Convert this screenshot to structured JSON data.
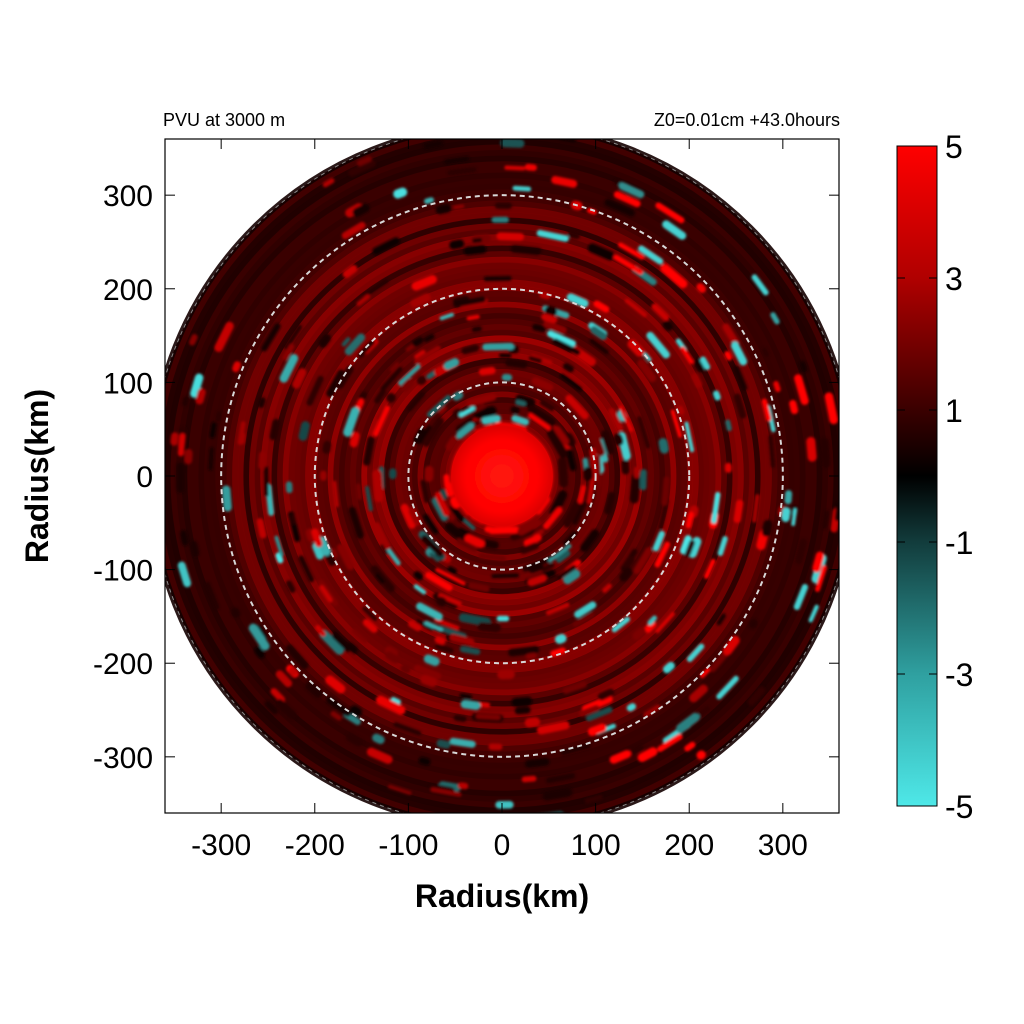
{
  "chart_data": {
    "type": "heatmap",
    "title_left": "PVU at  3000 m",
    "title_right": "Z0=0.01cm  +43.0hours",
    "xlabel": "Radius(km)",
    "ylabel": "Radius(km)",
    "xlim": [
      -360,
      360
    ],
    "ylim": [
      -360,
      360
    ],
    "x_ticks": [
      -300,
      -200,
      -100,
      0,
      100,
      200,
      300
    ],
    "y_ticks": [
      300,
      200,
      100,
      0,
      -100,
      -200,
      -300
    ],
    "data_radius_km": 375,
    "reference_circles_km": [
      100,
      200,
      300
    ],
    "colorbar": {
      "min": -5,
      "max": 5,
      "tick_labels": [
        "5",
        "3",
        "1",
        "-1",
        "-3",
        "-5"
      ],
      "tick_values": [
        5,
        3,
        1,
        -1,
        -3,
        -5
      ],
      "colors": {
        "high": "#ff0000",
        "mid": "#000000",
        "low": "#4ee8e8"
      }
    },
    "field_features": [
      {
        "name": "core",
        "radius_km": [
          0,
          55
        ],
        "value": 5
      },
      {
        "name": "inner-ring",
        "radius_km": [
          55,
          100
        ],
        "value": 1.5
      },
      {
        "name": "mid-ring",
        "radius_km": [
          100,
          200
        ],
        "value": 2
      },
      {
        "name": "outer-ring",
        "radius_km": [
          200,
          300
        ],
        "value": 1.8
      },
      {
        "name": "edge",
        "radius_km": [
          300,
          375
        ],
        "value": 0.8
      }
    ]
  }
}
